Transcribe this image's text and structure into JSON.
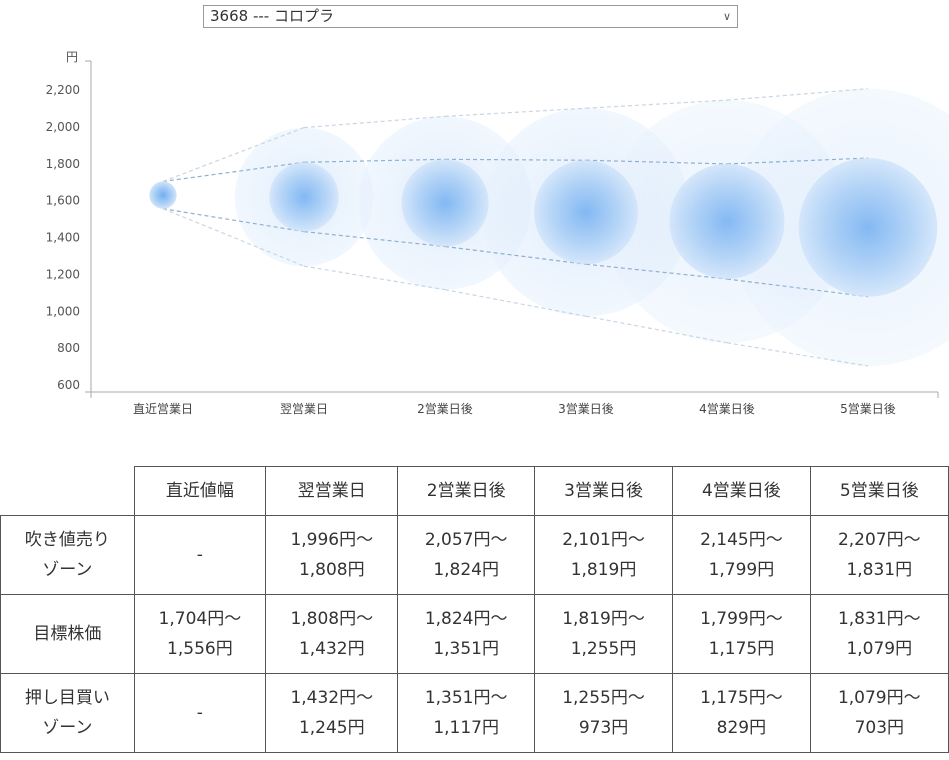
{
  "selector": {
    "value": "3668 --- コロプラ"
  },
  "chart_data": {
    "type": "bubble-range",
    "ylabel": "円",
    "ylim": [
      600,
      2200
    ],
    "yticks": [
      "600",
      "800",
      "1,000",
      "1,200",
      "1,400",
      "1,600",
      "1,800",
      "2,000",
      "2,200"
    ],
    "categories": [
      "直近営業日",
      "翌営業日",
      "2営業日後",
      "3営業日後",
      "4営業日後",
      "5営業日後"
    ],
    "target_high": [
      1704,
      1808,
      1824,
      1819,
      1799,
      1831
    ],
    "target_low": [
      1556,
      1432,
      1351,
      1255,
      1175,
      1079
    ],
    "zone_high": [
      1704,
      1996,
      2057,
      2101,
      2145,
      2207
    ],
    "zone_low": [
      1556,
      1245,
      1117,
      973,
      829,
      703
    ],
    "grid": false,
    "colors": {
      "inner": "#6aaaf0",
      "outer": "#d6e8fc",
      "line": "#8fb0d0"
    }
  },
  "table": {
    "headers": [
      "",
      "直近値幅",
      "翌営業日",
      "2営業日後",
      "3営業日後",
      "4営業日後",
      "5営業日後"
    ],
    "rows": [
      {
        "label": [
          "吹き値売り",
          "ゾーン"
        ],
        "cells": [
          [
            "-"
          ],
          [
            "1,996円～",
            "1,808円"
          ],
          [
            "2,057円～",
            "1,824円"
          ],
          [
            "2,101円～",
            "1,819円"
          ],
          [
            "2,145円～",
            "1,799円"
          ],
          [
            "2,207円～",
            "1,831円"
          ]
        ]
      },
      {
        "label": [
          "目標株価"
        ],
        "cells": [
          [
            "1,704円～",
            "1,556円"
          ],
          [
            "1,808円～",
            "1,432円"
          ],
          [
            "1,824円～",
            "1,351円"
          ],
          [
            "1,819円～",
            "1,255円"
          ],
          [
            "1,799円～",
            "1,175円"
          ],
          [
            "1,831円～",
            "1,079円"
          ]
        ]
      },
      {
        "label": [
          "押し目買い",
          "ゾーン"
        ],
        "cells": [
          [
            "-"
          ],
          [
            "1,432円～",
            "1,245円"
          ],
          [
            "1,351円～",
            "1,117円"
          ],
          [
            "1,255円～",
            "973円"
          ],
          [
            "1,175円～",
            "829円"
          ],
          [
            "1,079円～",
            "703円"
          ]
        ]
      }
    ]
  }
}
